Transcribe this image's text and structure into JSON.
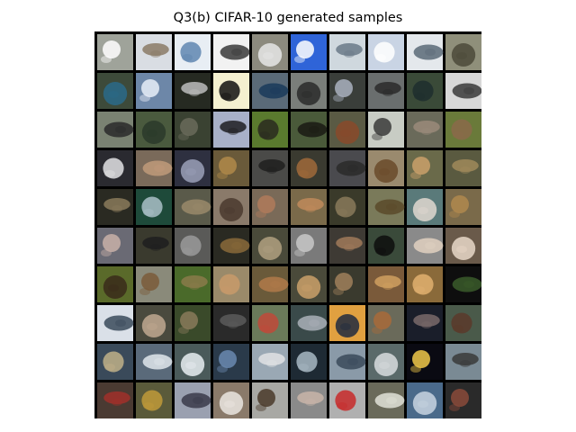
{
  "figure": {
    "title": "Q3(b) CIFAR-10 generated samples"
  },
  "grid": {
    "rows": 10,
    "cols": 10,
    "cell_label": "generated-sample",
    "rows_palette": [
      {
        "bg": [
          "#9fa39a",
          "#d9dde3",
          "#e8eef4",
          "#f2f2f2",
          "#8c8a7e",
          "#2f64d8",
          "#cfd8de",
          "#c9d4e4",
          "#e4e8ec",
          "#8f8f7a"
        ],
        "fg": [
          "#ffffff",
          "#8a7a66",
          "#5f86b0",
          "#3a3a3a",
          "#e6e6e6",
          "#ffffff",
          "#6a7a88",
          "#ffffff",
          "#5a6a78",
          "#4c4a3a"
        ]
      },
      {
        "bg": [
          "#3d4a3a",
          "#6d87a8",
          "#262a22",
          "#f4f0d0",
          "#5a6a78",
          "#7a7e7a",
          "#3a3e3a",
          "#6a6e6e",
          "#3a4a38",
          "#d8d8d8"
        ],
        "fg": [
          "#2a6a8a",
          "#e8eef8",
          "#bcbcbc",
          "#101010",
          "#1a3a5a",
          "#2a2a2a",
          "#aab2c0",
          "#2a2a2a",
          "#1e2e2e",
          "#3a3a3a"
        ]
      },
      {
        "bg": [
          "#7a8272",
          "#4a5a3e",
          "#3a4232",
          "#a8b0c8",
          "#5a7a2e",
          "#4a5a3a",
          "#5a5a44",
          "#c8ccc4",
          "#6a6a5a",
          "#6a7a3a"
        ],
        "fg": [
          "#2a2a2a",
          "#2a3a2a",
          "#6a6a5a",
          "#1e1e22",
          "#2a2a1e",
          "#1a1a14",
          "#8a4a2a",
          "#3a3a3a",
          "#9a8a7a",
          "#8a6a4a"
        ]
      },
      {
        "bg": [
          "#2a2a30",
          "#7a6a5a",
          "#2e3040",
          "#6a5a3a",
          "#4a4a48",
          "#3a3a30",
          "#4a4a4e",
          "#9a8a6e",
          "#6a6a4a",
          "#5a5a40"
        ],
        "fg": [
          "#e2e2e4",
          "#c09a7a",
          "#9aa0b8",
          "#b08a4a",
          "#1e1e1e",
          "#a06a3a",
          "#2a2a2a",
          "#6a4a2a",
          "#caa06a",
          "#a08a5a"
        ]
      },
      {
        "bg": [
          "#2a2a22",
          "#1e4a3a",
          "#5a5a4a",
          "#8a7a6a",
          "#7a6a58",
          "#7a6a4a",
          "#3a3a2a",
          "#7a7a5a",
          "#5a7a7a",
          "#7a6a4a"
        ],
        "fg": [
          "#8a7a5a",
          "#aac0c8",
          "#9a8a6a",
          "#4a3a2e",
          "#b07a5a",
          "#c08a5a",
          "#8a7a5a",
          "#5a4a2a",
          "#e0d8d0",
          "#b0884e"
        ]
      },
      {
        "bg": [
          "#6a6a74",
          "#3a3a2e",
          "#5a5a58",
          "#2a2a22",
          "#4a4a3a",
          "#7a7a7a",
          "#3e3a34",
          "#3a4a3a",
          "#8a8a8a",
          "#6a5a4a"
        ],
        "fg": [
          "#c8b0a8",
          "#1e1e1e",
          "#9a9a9a",
          "#8a6a3a",
          "#b0a080",
          "#c8c8c8",
          "#a07a5a",
          "#0e0e0e",
          "#e0d0c0",
          "#e8d8c8"
        ]
      },
      {
        "bg": [
          "#5a6a2a",
          "#8a8a7a",
          "#4a6a2a",
          "#9a8a6a",
          "#6a5a3a",
          "#4a4a3a",
          "#3a3a2e",
          "#7a5a3a",
          "#8a6a3a",
          "#0e0e0e"
        ],
        "fg": [
          "#3a2a1a",
          "#7a5a3a",
          "#8a7a4a",
          "#c89a6a",
          "#b07a4a",
          "#caa06a",
          "#a0805a",
          "#d0a060",
          "#e0b070",
          "#3a5a2a"
        ]
      },
      {
        "bg": [
          "#dae0e8",
          "#4a4a3e",
          "#3a4a2a",
          "#2a2a2a",
          "#6a7a5a",
          "#3a4a4a",
          "#e0a040",
          "#6a6a5a",
          "#1a1e2a",
          "#4a5a4a"
        ],
        "fg": [
          "#3a4a5a",
          "#c0a890",
          "#8a7a5a",
          "#5a5a5a",
          "#c04a3a",
          "#aab0b8",
          "#202a40",
          "#a86a3a",
          "#7a6a6a",
          "#5a3a2a"
        ]
      },
      {
        "bg": [
          "#3a4a5a",
          "#5a6a7a",
          "#4a5a5a",
          "#2a3a4a",
          "#9aa8b4",
          "#1e2a34",
          "#8a9aa8",
          "#5a6a6a",
          "#0a0a12",
          "#7a8a94"
        ],
        "fg": [
          "#c0b088",
          "#e0e6ec",
          "#e8eef2",
          "#6a8ab0",
          "#e0e2e4",
          "#a8b8c4",
          "#3a4a5a",
          "#d8dcde",
          "#f0c84a",
          "#3a3a3a"
        ]
      },
      {
        "bg": [
          "#4a3a32",
          "#5a5a3a",
          "#9aa0b0",
          "#8a7a6a",
          "#a8a8a4",
          "#8a8a8a",
          "#b0b0b0",
          "#6a6a5a",
          "#4a6a8a",
          "#2a2a2a"
        ],
        "fg": [
          "#a0302a",
          "#c09a3a",
          "#3a3a4a",
          "#eae6e0",
          "#4a3a2a",
          "#c8b4a8",
          "#c82a2a",
          "#e0e2d8",
          "#c8d4e0",
          "#8a4a3a"
        ]
      }
    ]
  }
}
